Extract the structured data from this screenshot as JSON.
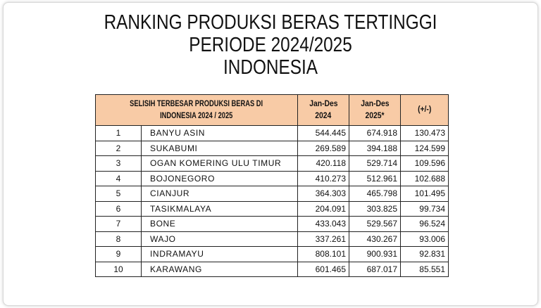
{
  "title": [
    "RANKING PRODUKSI BERAS TERTINGGI",
    "PERIODE 2024/2025",
    "INDONESIA"
  ],
  "table": {
    "header_color": "#f8cba6",
    "columns": [
      "SELISIH TERBESAR PRODUKSI BERAS   DI INDONESIA 2024 / 2025",
      "Jan-Des 2024",
      "Jan-Des 2025*",
      "(+/-)"
    ],
    "header_lines": {
      "c0": [
        "SELISIH TERBESAR PRODUKSI BERAS   DI",
        "INDONESIA 2024 / 2025"
      ],
      "c1": [
        "Jan-Des",
        "2024"
      ],
      "c2": [
        "Jan-Des",
        "2025*"
      ],
      "c3": [
        "(+/-)"
      ]
    },
    "rows": [
      [
        "1",
        "BANYU ASIN",
        "544.445",
        "674.918",
        "130.473"
      ],
      [
        "2",
        "SUKABUMI",
        "269.589",
        "394.188",
        "124.599"
      ],
      [
        "3",
        "OGAN KOMERING ULU TIMUR",
        "420.118",
        "529.714",
        "109.596"
      ],
      [
        "4",
        "BOJONEGORO",
        "410.273",
        "512.961",
        "102.688"
      ],
      [
        "5",
        "CIANJUR",
        "364.303",
        "465.798",
        "101.495"
      ],
      [
        "6",
        "TASIKMALAYA",
        "204.091",
        "303.825",
        "99.734"
      ],
      [
        "7",
        "BONE",
        "433.043",
        "529.567",
        "96.524"
      ],
      [
        "8",
        "WAJO",
        "337.261",
        "430.267",
        "93.006"
      ],
      [
        "9",
        "INDRAMAYU",
        "808.101",
        "900.931",
        "92.831"
      ],
      [
        "10",
        "KARAWANG",
        "601.465",
        "687.017",
        "85.551"
      ]
    ]
  }
}
